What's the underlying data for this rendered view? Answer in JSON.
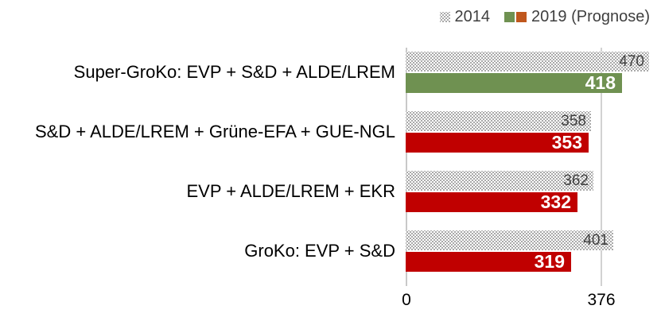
{
  "legend": {
    "items": [
      {
        "label": "2014",
        "swatch": "dotted-pattern"
      },
      {
        "label": "2019 (Prognose)",
        "swatch_colors": [
          "#6F9151",
          "#C0571D"
        ]
      }
    ]
  },
  "axis": {
    "tick_zero": "0",
    "tick_majority": "376"
  },
  "colors": {
    "green_2019": "#6F9151",
    "red_2019": "#C00000",
    "legend_green": "#6F9151",
    "legend_orange": "#C0571D",
    "pattern_dot": "#8C8C8C",
    "grid_line": "#D2D2D2",
    "axis_line": "#C8C8C8",
    "value_label_2014": "#404040",
    "value_label_2019": "#FFFFFF",
    "category_text": "#000000",
    "legend_text": "#3F3F3F"
  },
  "chart_data": {
    "type": "bar",
    "orientation": "horizontal",
    "title": "",
    "categories": [
      "Super-GroKo: EVP + S&D + ALDE/LREM",
      "S&D + ALDE/LREM + Grüne-EFA + GUE-NGL",
      "EVP + ALDE/LREM + EKR",
      "GroKo: EVP + S&D"
    ],
    "series": [
      {
        "name": "2014",
        "style": "dotted-pattern",
        "values": [
          470,
          358,
          362,
          401
        ]
      },
      {
        "name": "2019 (Prognose)",
        "style": "solid",
        "values": [
          418,
          353,
          332,
          319
        ],
        "bar_colors": [
          "#6F9151",
          "#C00000",
          "#C00000",
          "#C00000"
        ]
      }
    ],
    "xlim": [
      0,
      480
    ],
    "x_ticks": [
      0,
      376
    ],
    "gridline_x": 376,
    "majority_threshold": 376,
    "grid": "single-vertical-line",
    "legend_position": "top-right",
    "value_labels": "inside-end"
  }
}
